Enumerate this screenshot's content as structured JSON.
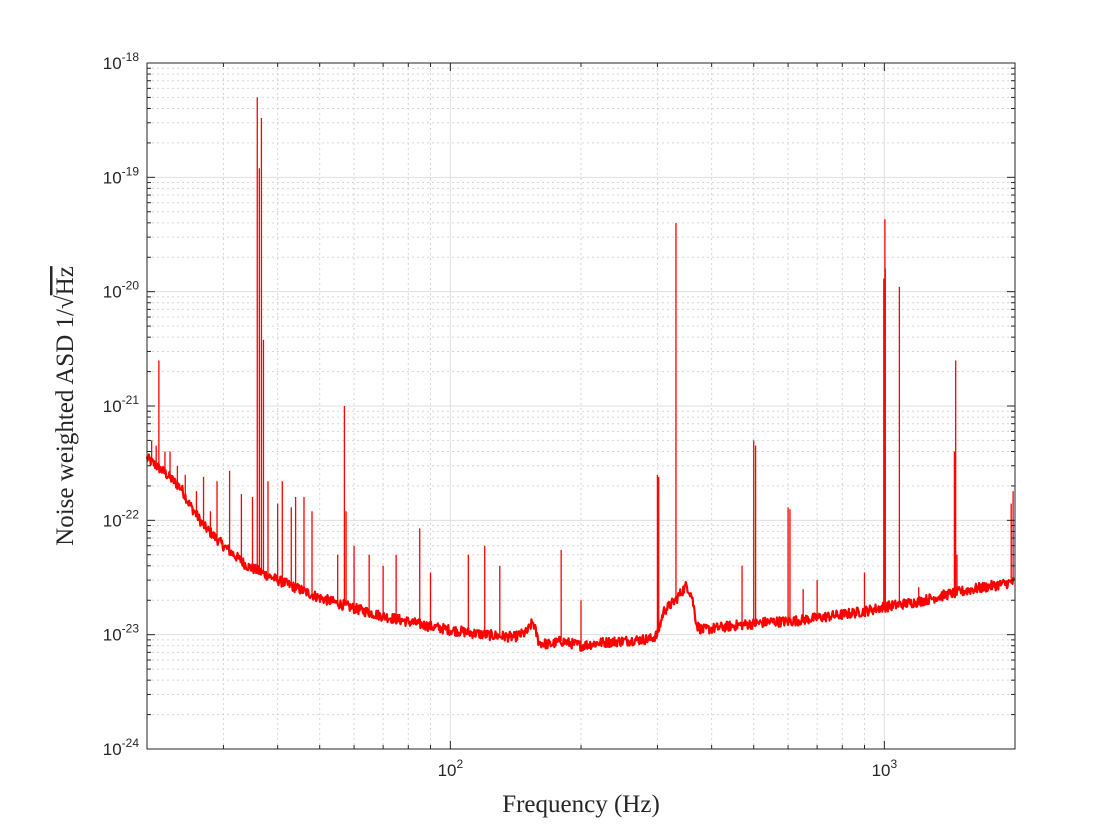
{
  "chart_data": {
    "type": "line",
    "title": "",
    "xlabel": "Frequency (Hz)",
    "ylabel_prefix": "Noise weighted ASD 1/",
    "ylabel_radicand": "Hz",
    "xscale": "log",
    "yscale": "log",
    "xlim": [
      20,
      2000
    ],
    "ylim": [
      1e-24,
      1e-18
    ],
    "grid": true,
    "minor_grid": true,
    "line_color": "#ff0000",
    "x_ticks": [
      {
        "base": "10",
        "exp": "2",
        "value": 100
      },
      {
        "base": "10",
        "exp": "3",
        "value": 1000
      }
    ],
    "y_ticks": [
      {
        "base": "10",
        "exp": "-24",
        "value": 1e-24
      },
      {
        "base": "10",
        "exp": "-23",
        "value": 1e-23
      },
      {
        "base": "10",
        "exp": "-22",
        "value": 1e-22
      },
      {
        "base": "10",
        "exp": "-21",
        "value": 1e-21
      },
      {
        "base": "10",
        "exp": "-20",
        "value": 1e-20
      },
      {
        "base": "10",
        "exp": "-19",
        "value": 1e-19
      },
      {
        "base": "10",
        "exp": "-18",
        "value": 1e-18
      }
    ],
    "series": [
      {
        "name": "",
        "floor": [
          [
            20,
            3.5e-22
          ],
          [
            22,
            2.6e-22
          ],
          [
            24,
            1.9e-22
          ],
          [
            25,
            1.4e-22
          ],
          [
            27,
            9e-23
          ],
          [
            30,
            6e-23
          ],
          [
            34,
            4e-23
          ],
          [
            40,
            3e-23
          ],
          [
            50,
            2.1e-23
          ],
          [
            60,
            1.7e-23
          ],
          [
            70,
            1.45e-23
          ],
          [
            80,
            1.3e-23
          ],
          [
            90,
            1.18e-23
          ],
          [
            100,
            1.1e-23
          ],
          [
            120,
            1e-23
          ],
          [
            140,
            9.5e-24
          ],
          [
            150,
            1.05e-23
          ],
          [
            155,
            1.3e-23
          ],
          [
            160,
            8.5e-24
          ],
          [
            170,
            8.2e-24
          ],
          [
            180,
            8.8e-24
          ],
          [
            200,
            8e-24
          ],
          [
            220,
            8.5e-24
          ],
          [
            250,
            8.8e-24
          ],
          [
            290,
            9.2e-24
          ],
          [
            300,
            1e-23
          ],
          [
            310,
            1.6e-23
          ],
          [
            330,
            2e-23
          ],
          [
            350,
            2.7e-23
          ],
          [
            360,
            2.2e-23
          ],
          [
            370,
            1.2e-23
          ],
          [
            380,
            1.1e-23
          ],
          [
            450,
            1.2e-23
          ],
          [
            500,
            1.25e-23
          ],
          [
            550,
            1.3e-23
          ],
          [
            600,
            1.3e-23
          ],
          [
            700,
            1.4e-23
          ],
          [
            800,
            1.5e-23
          ],
          [
            900,
            1.6e-23
          ],
          [
            1000,
            1.75e-23
          ],
          [
            1200,
            1.95e-23
          ],
          [
            1400,
            2.25e-23
          ],
          [
            1600,
            2.5e-23
          ],
          [
            1800,
            2.7e-23
          ],
          [
            2000,
            2.9e-23
          ]
        ],
        "peaks": [
          [
            20.5,
            5e-22
          ],
          [
            21,
            4.5e-22
          ],
          [
            21.3,
            2.5e-21
          ],
          [
            22,
            4e-22
          ],
          [
            22.6,
            4e-22
          ],
          [
            23.5,
            3e-22
          ],
          [
            24.5,
            2.5e-22
          ],
          [
            26,
            1.8e-22
          ],
          [
            27,
            2.4e-22
          ],
          [
            28,
            1.2e-22
          ],
          [
            29,
            2.2e-22
          ],
          [
            31,
            2.7e-22
          ],
          [
            33,
            1.7e-22
          ],
          [
            35,
            1.6e-22
          ],
          [
            35.9,
            5e-19
          ],
          [
            36.3,
            1.2e-19
          ],
          [
            36.7,
            3.3e-19
          ],
          [
            37.1,
            3.8e-21
          ],
          [
            38,
            2.2e-22
          ],
          [
            40,
            1.4e-22
          ],
          [
            41,
            2.2e-22
          ],
          [
            43,
            1.3e-22
          ],
          [
            44,
            1.6e-22
          ],
          [
            46,
            1.6e-22
          ],
          [
            48,
            1.2e-22
          ],
          [
            55,
            5e-23
          ],
          [
            57,
            1e-21
          ],
          [
            57.5,
            1.2e-22
          ],
          [
            60,
            6e-23
          ],
          [
            65,
            5e-23
          ],
          [
            70,
            4e-23
          ],
          [
            75,
            5e-23
          ],
          [
            85,
            8.5e-23
          ],
          [
            90,
            3.5e-23
          ],
          [
            110,
            5e-23
          ],
          [
            120,
            6e-23
          ],
          [
            130,
            4e-23
          ],
          [
            180,
            5.5e-23
          ],
          [
            200,
            2e-23
          ],
          [
            300,
            2.5e-22
          ],
          [
            302,
            2.4e-22
          ],
          [
            331,
            4e-20
          ],
          [
            470,
            4e-23
          ],
          [
            500,
            5e-22
          ],
          [
            505,
            4.5e-22
          ],
          [
            600,
            1.3e-22
          ],
          [
            606,
            1.25e-22
          ],
          [
            650,
            2.5e-23
          ],
          [
            700,
            3e-23
          ],
          [
            900,
            3.5e-23
          ],
          [
            997,
            1.3e-20
          ],
          [
            1003,
            4.3e-20
          ],
          [
            1005,
            1.6e-20
          ],
          [
            1083,
            1.1e-20
          ],
          [
            1200,
            2.6e-23
          ],
          [
            1450,
            4e-22
          ],
          [
            1460,
            2.5e-21
          ],
          [
            1470,
            5e-23
          ],
          [
            1960,
            1.4e-22
          ],
          [
            1980,
            1.8e-22
          ]
        ]
      }
    ]
  }
}
